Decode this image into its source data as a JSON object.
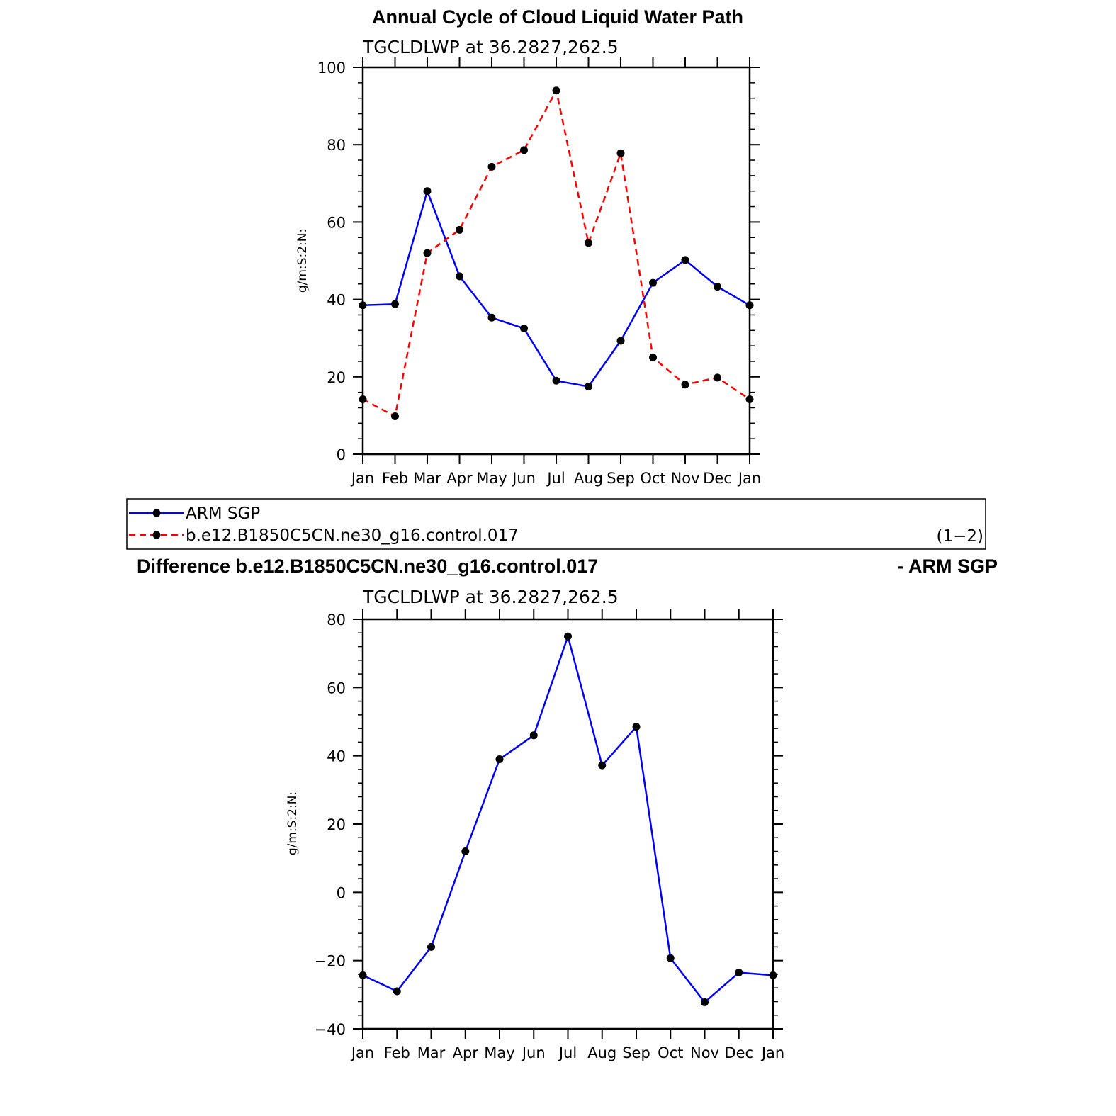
{
  "chart_data": [
    {
      "type": "line",
      "title": "Annual Cycle of Cloud Liquid Water Path",
      "subtitle": "TGCLDLWP  at  36.2827,262.5",
      "ylabel": "g/m:S:2:N:",
      "xlabel": "",
      "categories": [
        "Jan",
        "Feb",
        "Mar",
        "Apr",
        "May",
        "Jun",
        "Jul",
        "Aug",
        "Sep",
        "Oct",
        "Nov",
        "Dec",
        "Jan"
      ],
      "ylim": [
        0,
        100
      ],
      "yticks": [
        "0",
        "20",
        "40",
        "60",
        "80",
        "100"
      ],
      "series": [
        {
          "name": "ARM  SGP",
          "color": "#0000ff",
          "dash": "solid",
          "values": [
            38.5,
            38.8,
            68.0,
            46.0,
            35.3,
            32.5,
            19.0,
            17.5,
            29.3,
            44.3,
            50.2,
            43.3,
            38.5
          ]
        },
        {
          "name": "b.e12.B1850C5CN.ne30_g16.control.017",
          "color": "#ff0000",
          "dash": "dashed",
          "values": [
            14.2,
            9.8,
            52.0,
            58.0,
            74.3,
            78.6,
            94.0,
            54.6,
            77.8,
            25.0,
            18.0,
            19.8,
            14.2
          ]
        }
      ],
      "legend_note": "(1−2)"
    },
    {
      "type": "line",
      "title_left": "Difference b.e12.B1850C5CN.ne30_g16.control.017",
      "title_right": "- ARM SGP",
      "subtitle": "TGCLDLWP  at  36.2827,262.5",
      "ylabel": "g/m:S:2:N:",
      "xlabel": "",
      "categories": [
        "Jan",
        "Feb",
        "Mar",
        "Apr",
        "May",
        "Jun",
        "Jul",
        "Aug",
        "Sep",
        "Oct",
        "Nov",
        "Dec",
        "Jan"
      ],
      "ylim": [
        -40,
        80
      ],
      "yticks": [
        "−40",
        "−20",
        "0",
        "20",
        "40",
        "60",
        "80"
      ],
      "series": [
        {
          "color": "#0000ff",
          "dash": "solid",
          "values": [
            -24.3,
            -29.0,
            -16.0,
            12.0,
            39.0,
            46.0,
            75.0,
            37.2,
            48.5,
            -19.3,
            -32.2,
            -23.5,
            -24.3
          ]
        }
      ]
    }
  ]
}
